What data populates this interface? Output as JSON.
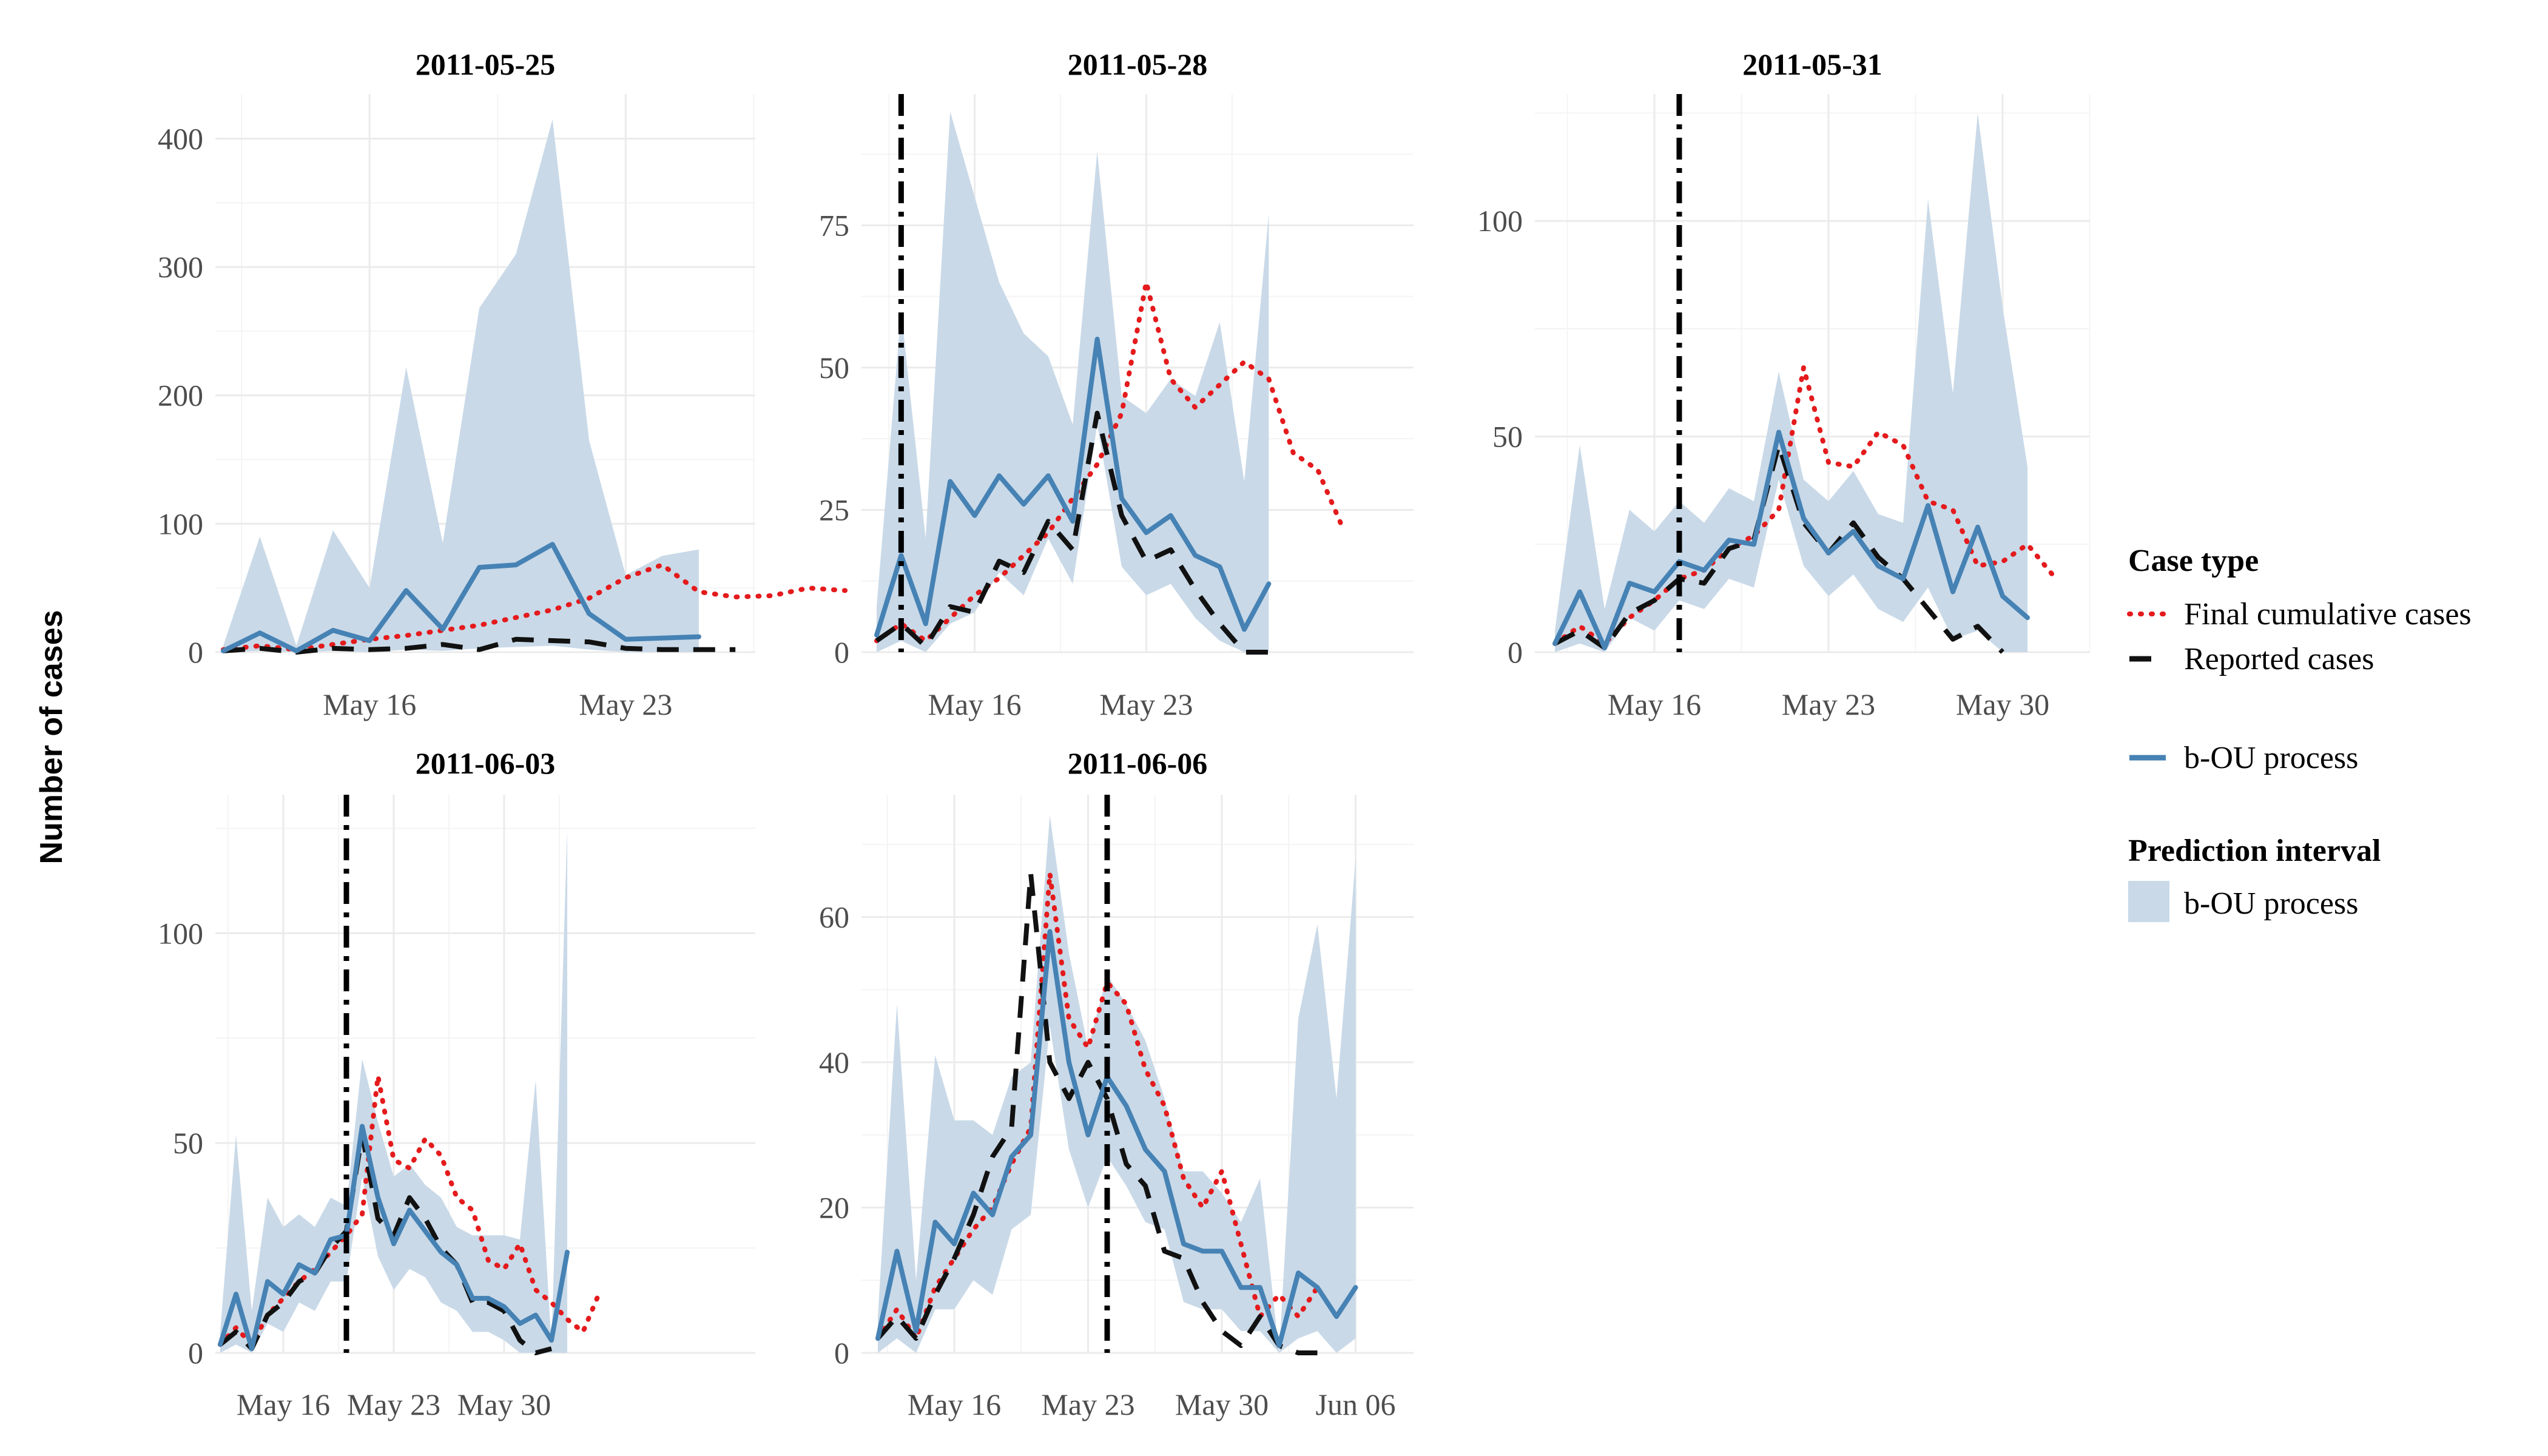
{
  "ylabel": "Number of cases",
  "legend": {
    "case_type_title": "Case type",
    "final_label": "Final cumulative cases",
    "reported_label": "Reported cases",
    "bou_label": "b-OU process",
    "interval_title": "Prediction interval",
    "interval_label": "b-OU process"
  },
  "colors": {
    "final": "#e41a1c",
    "reported": "#111111",
    "bou": "#4682b4",
    "band": "#c9d9e8",
    "grid_major": "#ebebeb",
    "grid_minor": "#f4f4f4"
  },
  "chart_data": [
    {
      "type": "line",
      "title": "2011-05-25",
      "start_date": "2011-05-12",
      "x_ticks": [
        {
          "label": "May 16",
          "date": "2011-05-16"
        },
        {
          "label": "May 23",
          "date": "2011-05-23"
        }
      ],
      "ylim": [
        0,
        430
      ],
      "y_ticks": [
        0,
        100,
        200,
        300,
        400
      ],
      "vline_date": null,
      "series": [
        {
          "name": "Final cumulative cases",
          "values": [
            2,
            5,
            2,
            6,
            10,
            13,
            17,
            21,
            27,
            33,
            42,
            58,
            68,
            47,
            43,
            44,
            50,
            48
          ]
        },
        {
          "name": "Reported cases",
          "values": [
            1,
            3,
            0,
            3,
            2,
            3,
            6,
            2,
            10,
            9,
            8,
            3,
            2,
            2,
            2
          ]
        },
        {
          "name": "b-OU process",
          "values": [
            1,
            15,
            1,
            17,
            9,
            48,
            18,
            66,
            68,
            84,
            30,
            10,
            11,
            12
          ]
        }
      ],
      "band": {
        "upper": [
          5,
          90,
          5,
          95,
          50,
          222,
          85,
          268,
          310,
          415,
          165,
          60,
          75,
          80
        ],
        "lower": [
          0,
          1,
          0,
          1,
          0,
          2,
          1,
          3,
          4,
          5,
          2,
          0,
          0,
          0
        ]
      }
    },
    {
      "type": "line",
      "title": "2011-05-28",
      "start_date": "2011-05-12",
      "x_ticks": [
        {
          "label": "May 16",
          "date": "2011-05-16"
        },
        {
          "label": "May 23",
          "date": "2011-05-23"
        }
      ],
      "ylim": [
        0,
        97
      ],
      "y_ticks": [
        0,
        25,
        50,
        75
      ],
      "vline_date": "2011-05-13",
      "series": [
        {
          "name": "Final cumulative cases",
          "values": [
            2,
            5,
            2,
            6,
            10,
            13,
            17,
            21,
            27,
            33,
            42,
            65,
            48,
            43,
            47,
            51,
            48,
            35,
            32,
            22
          ]
        },
        {
          "name": "Reported cases",
          "values": [
            2,
            5,
            1,
            8,
            7,
            16,
            14,
            23,
            18,
            42,
            24,
            16,
            18,
            11,
            5,
            0,
            0
          ]
        },
        {
          "name": "b-OU process",
          "values": [
            3,
            17,
            5,
            30,
            24,
            31,
            26,
            31,
            23,
            55,
            27,
            21,
            24,
            17,
            15,
            4,
            12
          ]
        }
      ],
      "band": {
        "upper": [
          8,
          60,
          20,
          95,
          80,
          65,
          56,
          52,
          40,
          88,
          45,
          42,
          48,
          45,
          58,
          30,
          77
        ],
        "lower": [
          0,
          2,
          0,
          5,
          7,
          14,
          10,
          20,
          12,
          40,
          15,
          10,
          12,
          6,
          2,
          0,
          0
        ]
      }
    },
    {
      "type": "line",
      "title": "2011-05-31",
      "start_date": "2011-05-12",
      "x_ticks": [
        {
          "label": "May 16",
          "date": "2011-05-16"
        },
        {
          "label": "May 23",
          "date": "2011-05-23"
        },
        {
          "label": "May 30",
          "date": "2011-05-30"
        }
      ],
      "ylim": [
        0,
        128
      ],
      "y_ticks": [
        0,
        50,
        100
      ],
      "vline_date": "2011-05-17",
      "series": [
        {
          "name": "Final cumulative cases",
          "values": [
            2,
            6,
            2,
            8,
            12,
            17,
            19,
            24,
            27,
            33,
            66,
            44,
            43,
            51,
            48,
            35,
            33,
            20,
            21,
            25,
            18
          ]
        },
        {
          "name": "Reported cases",
          "values": [
            2,
            5,
            1,
            9,
            12,
            17,
            16,
            24,
            26,
            48,
            30,
            23,
            30,
            22,
            17,
            10,
            3,
            6,
            0
          ]
        },
        {
          "name": "b-OU process",
          "values": [
            2,
            14,
            1,
            16,
            14,
            21,
            19,
            26,
            25,
            51,
            31,
            23,
            28,
            20,
            17,
            34,
            14,
            29,
            13,
            8
          ]
        }
      ],
      "band": {
        "upper": [
          5,
          48,
          10,
          33,
          28,
          35,
          30,
          38,
          35,
          65,
          40,
          35,
          42,
          32,
          30,
          105,
          60,
          125,
          80,
          43
        ],
        "lower": [
          0,
          2,
          0,
          8,
          5,
          12,
          10,
          17,
          15,
          40,
          20,
          13,
          18,
          10,
          7,
          15,
          3,
          5,
          0,
          0
        ]
      }
    },
    {
      "type": "line",
      "title": "2011-06-03",
      "start_date": "2011-05-12",
      "x_ticks": [
        {
          "label": "May 16",
          "date": "2011-05-16"
        },
        {
          "label": "May 23",
          "date": "2011-05-23"
        },
        {
          "label": "May 30",
          "date": "2011-05-30"
        }
      ],
      "ylim": [
        0,
        133
      ],
      "y_ticks": [
        0,
        50,
        100
      ],
      "vline_date": "2011-05-20",
      "series": [
        {
          "name": "Final cumulative cases",
          "values": [
            2,
            6,
            2,
            9,
            13,
            17,
            20,
            24,
            28,
            33,
            66,
            46,
            44,
            51,
            47,
            37,
            34,
            22,
            20,
            26,
            15,
            12,
            8,
            5,
            14
          ]
        },
        {
          "name": "Reported cases",
          "values": [
            2,
            5,
            1,
            9,
            12,
            17,
            19,
            25,
            29,
            52,
            32,
            28,
            37,
            32,
            25,
            21,
            12,
            12,
            10,
            3,
            0,
            1
          ]
        },
        {
          "name": "b-OU process",
          "values": [
            2,
            14,
            1,
            17,
            14,
            21,
            19,
            27,
            28,
            54,
            37,
            26,
            34,
            29,
            24,
            21,
            13,
            13,
            11,
            7,
            9,
            3,
            24
          ]
        }
      ],
      "band": {
        "upper": [
          5,
          52,
          10,
          37,
          30,
          33,
          30,
          37,
          35,
          70,
          55,
          42,
          45,
          40,
          37,
          30,
          28,
          28,
          28,
          27,
          65,
          2,
          125
        ],
        "lower": [
          0,
          2,
          0,
          7,
          5,
          12,
          10,
          17,
          17,
          42,
          23,
          15,
          20,
          18,
          12,
          10,
          5,
          5,
          3,
          0,
          0,
          0,
          0
        ]
      }
    },
    {
      "type": "line",
      "title": "2011-06-06",
      "start_date": "2011-05-12",
      "x_ticks": [
        {
          "label": "May 16",
          "date": "2011-05-16"
        },
        {
          "label": "May 23",
          "date": "2011-05-23"
        },
        {
          "label": "May 30",
          "date": "2011-05-30"
        },
        {
          "label": "Jun 06",
          "date": "2011-06-06"
        }
      ],
      "ylim": [
        0,
        76
      ],
      "y_ticks": [
        0,
        20,
        40,
        60
      ],
      "vline_date": "2011-05-24",
      "series": [
        {
          "name": "Final cumulative cases",
          "values": [
            2,
            6,
            2,
            9,
            13,
            17,
            20,
            26,
            31,
            66,
            46,
            42,
            51,
            48,
            39,
            34,
            24,
            20,
            25,
            15,
            5,
            8,
            5,
            9
          ]
        },
        {
          "name": "Reported cases",
          "values": [
            2,
            5,
            2,
            8,
            13,
            19,
            27,
            31,
            66,
            40,
            35,
            40,
            35,
            26,
            23,
            14,
            13,
            7,
            3,
            1,
            5,
            1,
            0,
            0
          ]
        },
        {
          "name": "b-OU process",
          "values": [
            2,
            14,
            3,
            18,
            15,
            22,
            19,
            27,
            30,
            58,
            40,
            30,
            38,
            34,
            28,
            25,
            15,
            14,
            14,
            9,
            9,
            1,
            11,
            9,
            5,
            9
          ]
        }
      ],
      "band": {
        "upper": [
          5,
          48,
          10,
          41,
          32,
          32,
          30,
          38,
          40,
          74,
          55,
          42,
          52,
          48,
          43,
          35,
          25,
          25,
          22,
          18,
          24,
          0,
          46,
          59,
          35,
          68
        ],
        "lower": [
          0,
          2,
          0,
          6,
          6,
          10,
          8,
          17,
          19,
          45,
          28,
          20,
          27,
          23,
          18,
          17,
          7,
          6,
          6,
          3,
          3,
          0,
          2,
          3,
          0,
          2
        ]
      }
    }
  ]
}
